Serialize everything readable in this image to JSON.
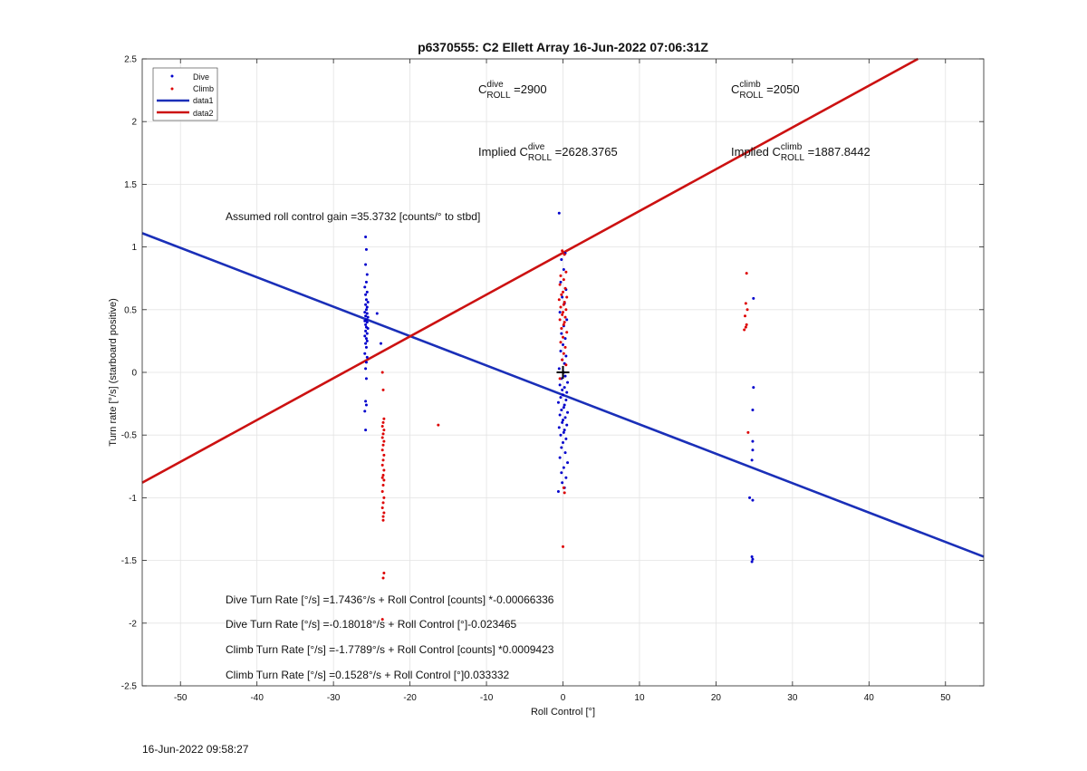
{
  "chart_data": {
    "type": "scatter",
    "title": "p6370555: C2 Ellett Array 16-Jun-2022 07:06:31Z",
    "xlabel": "Roll Control [°]",
    "ylabel": "Turn rate [°/s] (starboard positive)",
    "xlim": [
      -55,
      55
    ],
    "ylim": [
      -2.5,
      2.5
    ],
    "xticks": [
      -50,
      -40,
      -30,
      -20,
      -10,
      0,
      10,
      20,
      30,
      40,
      50
    ],
    "yticks": [
      2.5,
      2,
      1.5,
      1,
      0.5,
      0,
      -0.5,
      -1,
      -1.5,
      -2,
      -2.5
    ],
    "grid": true,
    "legend_position": "top-left",
    "legend": [
      "Dive",
      "Climb",
      "data1",
      "data2"
    ],
    "colors": {
      "dive": "#0000cc",
      "climb": "#dd0000",
      "data1": "#1a2fb8",
      "data2": "#cc1111",
      "marker": "#000000"
    },
    "series": [
      {
        "name": "Dive",
        "mode": "markers",
        "color": "#0000cc",
        "points": [
          [
            -25.8,
            1.08
          ],
          [
            -25.7,
            0.98
          ],
          [
            -25.8,
            0.86
          ],
          [
            -25.6,
            0.78
          ],
          [
            -25.7,
            0.72
          ],
          [
            -25.9,
            0.68
          ],
          [
            -25.6,
            0.64
          ],
          [
            -25.8,
            0.62
          ],
          [
            -25.7,
            0.58
          ],
          [
            -25.5,
            0.56
          ],
          [
            -25.8,
            0.54
          ],
          [
            -25.6,
            0.52
          ],
          [
            -25.7,
            0.5
          ],
          [
            -25.9,
            0.48
          ],
          [
            -25.6,
            0.47
          ],
          [
            -25.8,
            0.45
          ],
          [
            -25.5,
            0.44
          ],
          [
            -25.7,
            0.42
          ],
          [
            -25.9,
            0.41
          ],
          [
            -25.6,
            0.4
          ],
          [
            -25.8,
            0.38
          ],
          [
            -25.7,
            0.36
          ],
          [
            -25.5,
            0.35
          ],
          [
            -25.8,
            0.33
          ],
          [
            -25.6,
            0.31
          ],
          [
            -25.9,
            0.29
          ],
          [
            -25.7,
            0.27
          ],
          [
            -25.6,
            0.25
          ],
          [
            -25.8,
            0.23
          ],
          [
            -25.7,
            0.2
          ],
          [
            -25.9,
            0.15
          ],
          [
            -25.6,
            0.12
          ],
          [
            -25.7,
            0.08
          ],
          [
            -25.8,
            0.03
          ],
          [
            -25.7,
            -0.05
          ],
          [
            -25.8,
            -0.23
          ],
          [
            -25.7,
            -0.26
          ],
          [
            -25.9,
            -0.31
          ],
          [
            -25.8,
            -0.46
          ],
          [
            -23.8,
            0.23
          ],
          [
            -24.3,
            0.47
          ],
          [
            -0.5,
            1.27
          ],
          [
            0.3,
            0.95
          ],
          [
            -0.2,
            0.9
          ],
          [
            0.1,
            0.82
          ],
          [
            -0.3,
            0.72
          ],
          [
            0.4,
            0.66
          ],
          [
            -0.1,
            0.6
          ],
          [
            0.2,
            0.55
          ],
          [
            -0.4,
            0.48
          ],
          [
            0.5,
            0.42
          ],
          [
            0.1,
            0.37
          ],
          [
            -0.2,
            0.31
          ],
          [
            0.3,
            0.27
          ],
          [
            0.0,
            0.22
          ],
          [
            -0.3,
            0.17
          ],
          [
            0.4,
            0.13
          ],
          [
            -0.1,
            0.1
          ],
          [
            0.2,
            0.07
          ],
          [
            -0.5,
            0.03
          ],
          [
            0.1,
            0.0
          ],
          [
            0.3,
            -0.03
          ],
          [
            -0.2,
            -0.05
          ],
          [
            0.6,
            -0.08
          ],
          [
            -0.4,
            -0.1
          ],
          [
            0.2,
            -0.12
          ],
          [
            -0.1,
            -0.14
          ],
          [
            0.5,
            -0.16
          ],
          [
            0.0,
            -0.18
          ],
          [
            -0.3,
            -0.2
          ],
          [
            0.4,
            -0.22
          ],
          [
            -0.6,
            -0.24
          ],
          [
            0.2,
            -0.26
          ],
          [
            0.1,
            -0.28
          ],
          [
            -0.2,
            -0.3
          ],
          [
            0.6,
            -0.32
          ],
          [
            -0.4,
            -0.34
          ],
          [
            0.3,
            -0.36
          ],
          [
            0.0,
            -0.38
          ],
          [
            -0.1,
            -0.4
          ],
          [
            0.5,
            -0.42
          ],
          [
            -0.5,
            -0.44
          ],
          [
            0.2,
            -0.46
          ],
          [
            0.1,
            -0.48
          ],
          [
            -0.3,
            -0.5
          ],
          [
            0.4,
            -0.53
          ],
          [
            0.0,
            -0.56
          ],
          [
            -0.2,
            -0.6
          ],
          [
            0.3,
            -0.64
          ],
          [
            -0.4,
            -0.68
          ],
          [
            0.6,
            -0.72
          ],
          [
            0.1,
            -0.76
          ],
          [
            -0.2,
            -0.8
          ],
          [
            0.4,
            -0.84
          ],
          [
            -0.1,
            -0.88
          ],
          [
            0.2,
            -0.92
          ],
          [
            -0.6,
            -0.95
          ],
          [
            24.9,
            0.59
          ],
          [
            24.9,
            -0.12
          ],
          [
            24.8,
            -0.3
          ],
          [
            24.8,
            -0.55
          ],
          [
            24.8,
            -0.62
          ],
          [
            24.7,
            -0.7
          ],
          [
            24.4,
            -1.0
          ],
          [
            24.8,
            -1.02
          ],
          [
            24.7,
            -1.47
          ],
          [
            24.8,
            -1.49
          ],
          [
            24.7,
            -1.51
          ]
        ]
      },
      {
        "name": "Climb",
        "mode": "markers",
        "color": "#dd0000",
        "points": [
          [
            -23.6,
            0.0
          ],
          [
            -23.5,
            -0.14
          ],
          [
            -23.4,
            -0.37
          ],
          [
            -23.5,
            -0.4
          ],
          [
            -23.6,
            -0.43
          ],
          [
            -23.4,
            -0.46
          ],
          [
            -23.5,
            -0.49
          ],
          [
            -23.6,
            -0.52
          ],
          [
            -23.4,
            -0.55
          ],
          [
            -23.5,
            -0.58
          ],
          [
            -23.6,
            -0.62
          ],
          [
            -23.4,
            -0.66
          ],
          [
            -23.5,
            -0.7
          ],
          [
            -23.6,
            -0.74
          ],
          [
            -23.4,
            -0.78
          ],
          [
            -23.5,
            -0.82
          ],
          [
            -23.6,
            -0.84
          ],
          [
            -23.4,
            -0.86
          ],
          [
            -23.5,
            -0.9
          ],
          [
            -23.6,
            -0.95
          ],
          [
            -23.4,
            -1.0
          ],
          [
            -23.5,
            -1.04
          ],
          [
            -23.6,
            -1.08
          ],
          [
            -23.4,
            -1.12
          ],
          [
            -23.5,
            -1.15
          ],
          [
            -23.5,
            -1.18
          ],
          [
            -23.4,
            -1.6
          ],
          [
            -23.5,
            -1.64
          ],
          [
            -23.6,
            -1.97
          ],
          [
            -16.3,
            -0.42
          ],
          [
            -0.1,
            0.97
          ],
          [
            0.2,
            0.94
          ],
          [
            0.4,
            0.8
          ],
          [
            -0.3,
            0.77
          ],
          [
            0.1,
            0.74
          ],
          [
            -0.4,
            0.7
          ],
          [
            0.3,
            0.67
          ],
          [
            0.0,
            0.64
          ],
          [
            -0.2,
            0.62
          ],
          [
            0.5,
            0.6
          ],
          [
            -0.5,
            0.58
          ],
          [
            0.2,
            0.56
          ],
          [
            0.1,
            0.54
          ],
          [
            -0.3,
            0.52
          ],
          [
            0.4,
            0.5
          ],
          [
            0.0,
            0.48
          ],
          [
            -0.1,
            0.46
          ],
          [
            0.3,
            0.44
          ],
          [
            -0.4,
            0.42
          ],
          [
            0.2,
            0.4
          ],
          [
            0.1,
            0.38
          ],
          [
            -0.2,
            0.35
          ],
          [
            0.5,
            0.32
          ],
          [
            0.0,
            0.28
          ],
          [
            -0.3,
            0.24
          ],
          [
            0.3,
            0.2
          ],
          [
            0.1,
            0.15
          ],
          [
            -0.1,
            0.1
          ],
          [
            0.4,
            0.06
          ],
          [
            -0.4,
            -0.05
          ],
          [
            0.1,
            -0.92
          ],
          [
            0.2,
            -0.96
          ],
          [
            0.0,
            -1.39
          ],
          [
            24.0,
            0.79
          ],
          [
            23.9,
            0.55
          ],
          [
            24.1,
            0.5
          ],
          [
            23.8,
            0.45
          ],
          [
            24.0,
            0.38
          ],
          [
            23.9,
            0.36
          ],
          [
            23.7,
            0.34
          ],
          [
            24.2,
            -0.48
          ]
        ]
      },
      {
        "name": "data1",
        "mode": "line",
        "color": "#1a2fb8",
        "x": [
          -55,
          55
        ],
        "y": [
          1.11,
          -1.47
        ]
      },
      {
        "name": "data2",
        "mode": "line",
        "color": "#cc1111",
        "x": [
          -55,
          46.4
        ],
        "y": [
          -0.88,
          2.5
        ]
      }
    ],
    "marker_point": {
      "x": 0,
      "y": 0,
      "symbol": "+"
    },
    "annotations": {
      "c_dive": {
        "prefix": "C",
        "sup": "dive",
        "sub": "ROLL",
        "value": " =2900"
      },
      "c_climb": {
        "prefix": "C",
        "sup": "climb",
        "sub": "ROLL",
        "value": " =2050"
      },
      "implied_dive": {
        "prefix": "Implied C",
        "sup": "dive",
        "sub": "ROLL",
        "value": " =2628.3765"
      },
      "implied_climb": {
        "prefix": "Implied C",
        "sup": "climb",
        "sub": "ROLL",
        "value": " =1887.8442"
      },
      "gain": "Assumed roll control gain =35.3732 [counts/° to stbd]",
      "eq1": "Dive Turn Rate [°/s] =1.7436°/s + Roll Control [counts] *-0.00066336",
      "eq2": "Dive Turn Rate [°/s] =-0.18018°/s + Roll Control [°]-0.023465",
      "eq3": "Climb Turn Rate [°/s] =-1.7789°/s + Roll Control [counts] *0.0009423",
      "eq4": "Climb Turn Rate [°/s] =0.1528°/s + Roll Control [°]0.033332"
    }
  },
  "footer": {
    "timestamp": "16-Jun-2022 09:58:27"
  }
}
